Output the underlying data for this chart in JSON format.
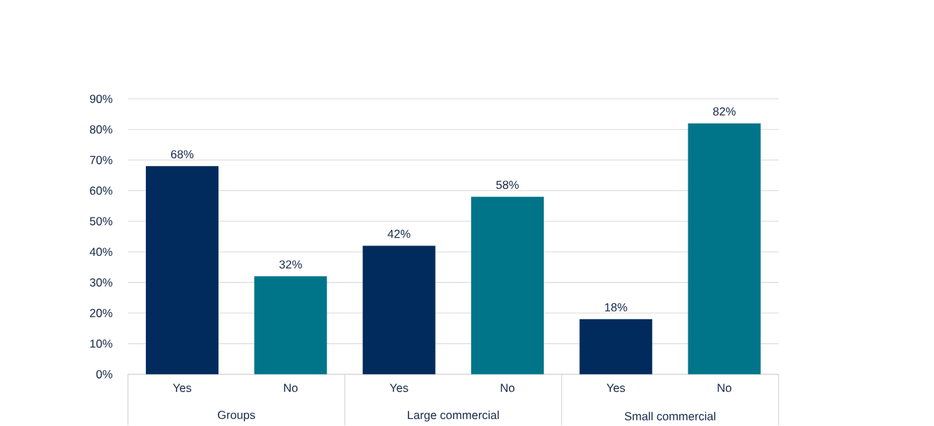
{
  "chart_data": {
    "type": "bar",
    "categories": [
      "Yes",
      "No",
      "Yes",
      "No",
      "Yes",
      "No"
    ],
    "values": [
      68,
      32,
      42,
      58,
      18,
      82
    ],
    "value_labels": [
      "68%",
      "32%",
      "42%",
      "58%",
      "18%",
      "82%"
    ],
    "colors": [
      "#002b5c",
      "#00758a",
      "#002b5c",
      "#00758a",
      "#002b5c",
      "#00758a"
    ],
    "ylim": [
      0,
      90
    ],
    "yticks": [
      {
        "value": 0,
        "label": "0%"
      },
      {
        "value": 10,
        "label": "10%"
      },
      {
        "value": 20,
        "label": "20%"
      },
      {
        "value": 30,
        "label": "30%"
      },
      {
        "value": 40,
        "label": "40%"
      },
      {
        "value": 50,
        "label": "50%"
      },
      {
        "value": 60,
        "label": "60%"
      },
      {
        "value": 70,
        "label": "70%"
      },
      {
        "value": 80,
        "label": "80%"
      },
      {
        "value": 90,
        "label": "90%"
      }
    ],
    "grid": "y",
    "annotations": [
      "Groups",
      "Large commercial",
      "Small commercial"
    ]
  }
}
